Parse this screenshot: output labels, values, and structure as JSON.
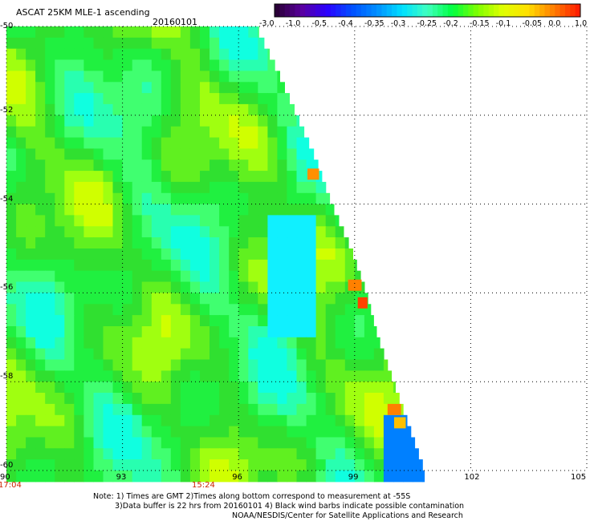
{
  "title": "ASCAT 25KM MLE-1 ascending",
  "date": "20160101",
  "colorbar": {
    "labels": [
      "-3.0",
      "-1.0",
      "-0.5",
      "-0.4",
      "-0.35",
      "-0.3",
      "-0.25",
      "-0.2",
      "-0.15",
      "-0.1",
      "-0.05",
      "0.0",
      "1.0"
    ],
    "colors": [
      "#2a0038",
      "#5a00a0",
      "#2a00ff",
      "#0050ff",
      "#0090ff",
      "#00e0ff",
      "#40ffc0",
      "#00ff40",
      "#80ff00",
      "#e0ff00",
      "#ffe000",
      "#ff8000",
      "#ff2000"
    ]
  },
  "chart_data": {
    "type": "heatmap",
    "title": "ASCAT 25KM MLE-1 ascending",
    "subtitle": "20160101",
    "x_ticks": [
      "90",
      "93",
      "96",
      "99",
      "102",
      "105"
    ],
    "x_range": [
      90,
      105
    ],
    "y_ticks": [
      "-50",
      "-52",
      "-54",
      "-56",
      "-58",
      "-60"
    ],
    "y_range": [
      -60,
      -50
    ],
    "time_labels": [
      {
        "lon": 90,
        "text": "17:04"
      },
      {
        "lon": 95,
        "text": "15:24"
      }
    ],
    "grid": true,
    "swath_edge": [
      {
        "lat": -50.0,
        "lon": 96.45
      },
      {
        "lat": -51.0,
        "lon": 97.0
      },
      {
        "lat": -52.0,
        "lon": 97.5
      },
      {
        "lat": -53.0,
        "lon": 98.0
      },
      {
        "lat": -54.0,
        "lon": 98.4
      },
      {
        "lat": -55.0,
        "lon": 98.9
      },
      {
        "lat": -56.0,
        "lon": 99.3
      },
      {
        "lat": -57.0,
        "lon": 99.6
      },
      {
        "lat": -58.0,
        "lon": 100.0
      },
      {
        "lat": -59.0,
        "lon": 100.4
      },
      {
        "lat": -60.0,
        "lon": 100.8
      }
    ]
  },
  "notes": [
    "Note: 1) Times are GMT 2)Times along bottom correspond to measurement at -55S",
    "3)Data buffer is 22 hrs from 20160101 4) Black wind barbs indicate possible contamination",
    "NOAA/NESDIS/Center for Satellite Applications and Research"
  ]
}
